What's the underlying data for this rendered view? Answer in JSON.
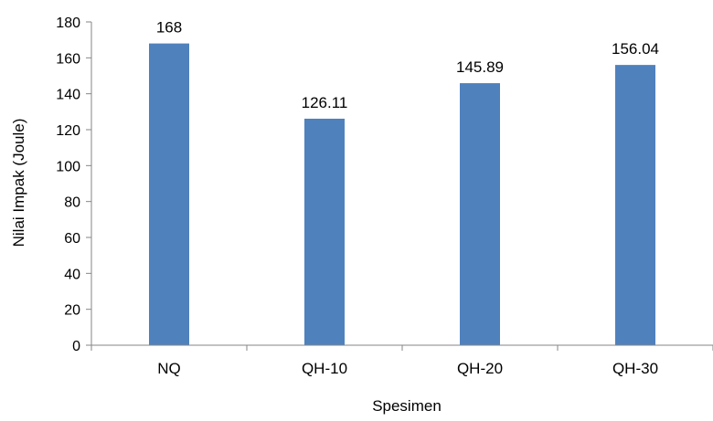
{
  "chart_data": {
    "type": "bar",
    "categories": [
      "NQ",
      "QH-10",
      "QH-20",
      "QH-30"
    ],
    "values": [
      168,
      126.11,
      145.89,
      156.04
    ],
    "data_labels": [
      "168",
      "126.11",
      "145.89",
      "156.04"
    ],
    "xlabel": "Spesimen",
    "ylabel": "Nilai Impak (Joule)",
    "ylim": [
      0,
      180
    ],
    "yticks": [
      0,
      20,
      40,
      60,
      80,
      100,
      120,
      140,
      160,
      180
    ],
    "grid": false,
    "legend": "none",
    "bar_color": "#4f81bd",
    "axis_color": "#868686"
  }
}
